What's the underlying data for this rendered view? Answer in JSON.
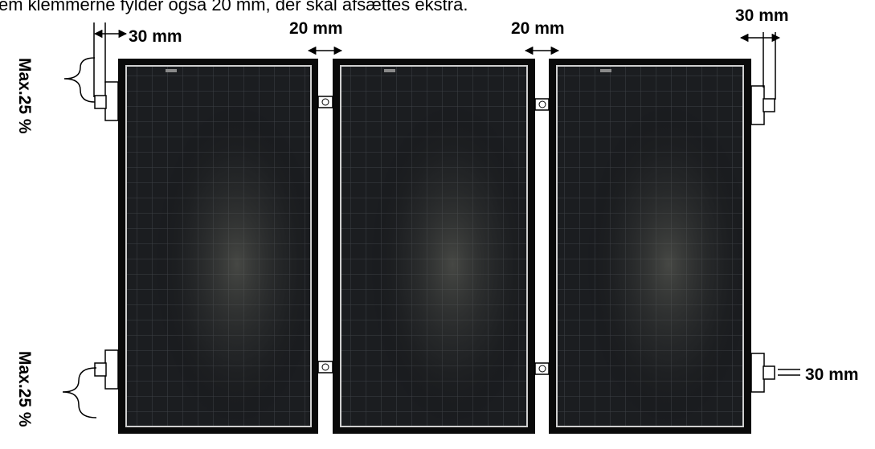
{
  "caption": "em klemmerne fylder også 20 mm, der skal afsættes ekstra.",
  "labels": {
    "left_end_gap": "30 mm",
    "gap_1": "20 mm",
    "gap_2": "20 mm",
    "right_end_gap": "30 mm",
    "right_clamp_width": "30 mm",
    "max_top": "Max.25 %",
    "max_bottom": "Max.25 %"
  },
  "panels": {
    "count": 3,
    "frame_color": "#0a0a0a",
    "cell_color": "#1b1d20",
    "grid_color": "#4a4d52"
  }
}
